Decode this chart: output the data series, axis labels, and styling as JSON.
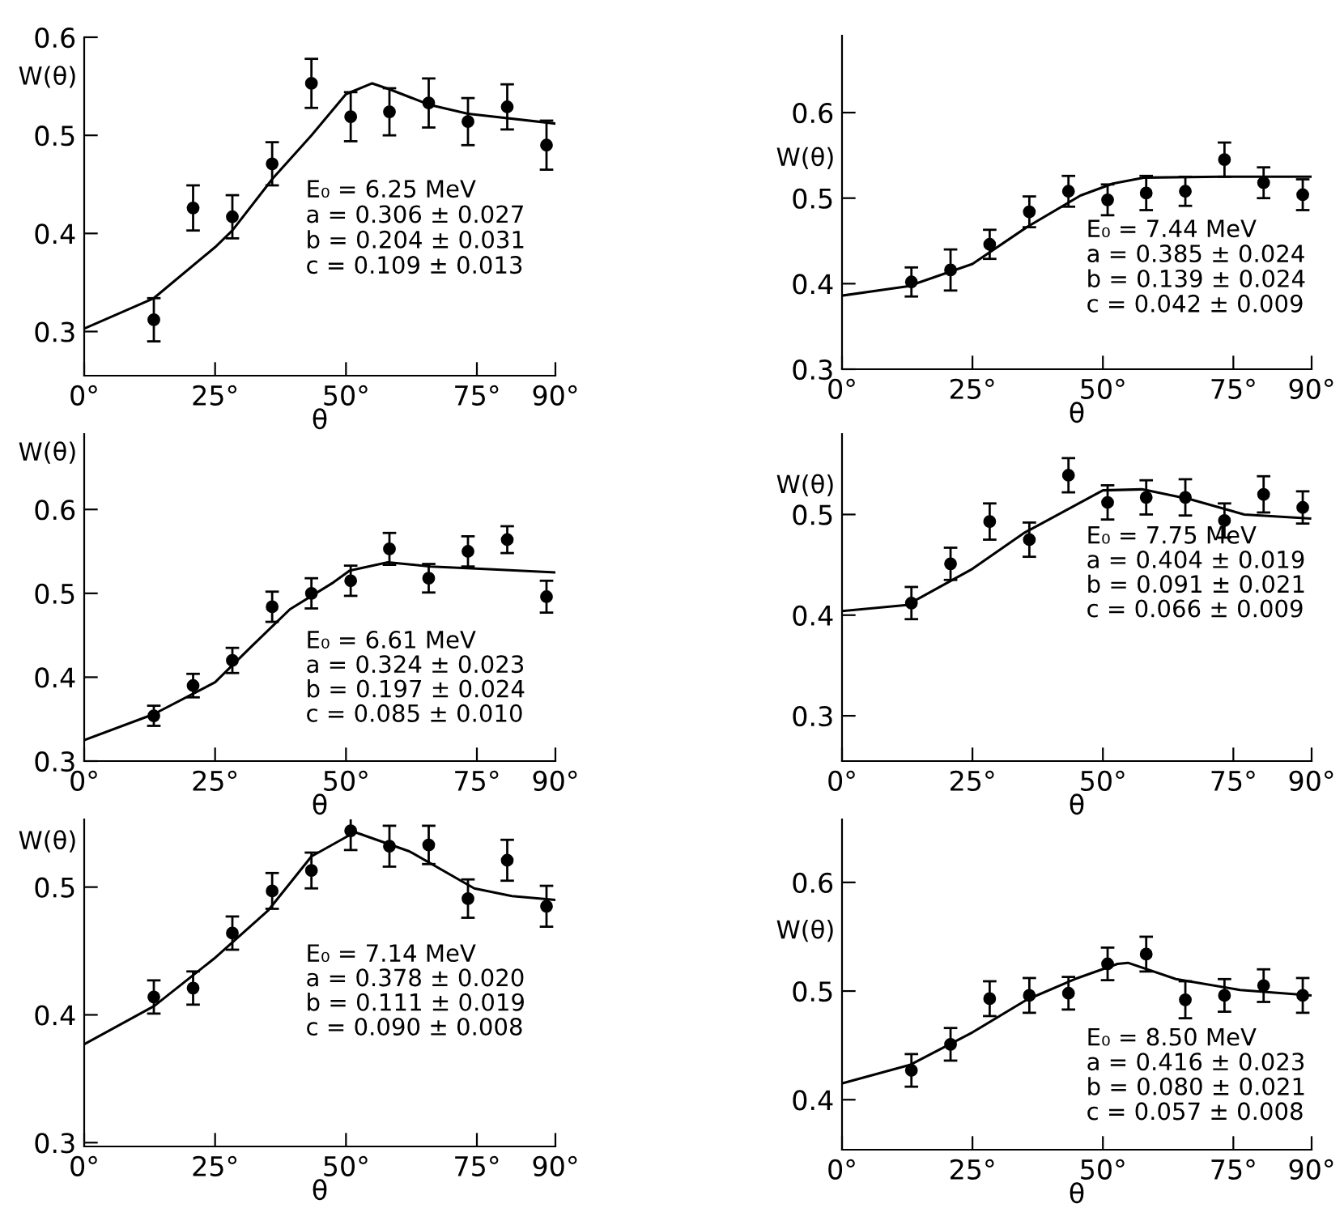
{
  "chart_data": [
    {
      "type": "scatter",
      "xlabel": "θ",
      "ylabel": "W(θ)",
      "xlim": [
        0,
        90
      ],
      "ylim": [
        0.255,
        0.6
      ],
      "xticks": [
        {
          "value": 0,
          "label": "0°"
        },
        {
          "value": 25,
          "label": "25°"
        },
        {
          "value": 50,
          "label": "50°"
        },
        {
          "value": 75,
          "label": "75°"
        },
        {
          "value": 90,
          "label": "90°"
        }
      ],
      "yticks": [
        0.3,
        0.4,
        0.5,
        0.6
      ],
      "grid": false,
      "line_style": "solid",
      "annotations": [
        "E₀ = 6.25 MeV",
        "a = 0.306 ± 0.027",
        "b = 0.204 ± 0.031",
        "c = 0.109 ± 0.013"
      ],
      "series": [
        {
          "marker": "circle",
          "color": "#000000",
          "x": [
            13.3,
            20.8,
            28.3,
            35.9,
            43.4,
            50.9,
            58.3,
            65.8,
            73.3,
            80.8,
            88.3
          ],
          "values": [
            0.312,
            0.426,
            0.417,
            0.471,
            0.553,
            0.519,
            0.524,
            0.533,
            0.514,
            0.529,
            0.49
          ],
          "errors": [
            0.022,
            0.023,
            0.022,
            0.022,
            0.025,
            0.025,
            0.024,
            0.025,
            0.024,
            0.023,
            0.025
          ]
        },
        {
          "type": "line",
          "color": "#000000",
          "x": [
            0,
            13.3,
            25,
            28.3,
            36,
            43.4,
            50,
            55,
            58.3,
            66,
            73.3,
            90
          ],
          "values": [
            0.303,
            0.334,
            0.386,
            0.403,
            0.456,
            0.5,
            0.542,
            0.553,
            0.547,
            0.531,
            0.522,
            0.512
          ]
        }
      ]
    },
    {
      "type": "scatter",
      "xlabel": "θ",
      "ylabel": "W(θ)",
      "xlim": [
        0,
        90
      ],
      "ylim": [
        0.3,
        0.69
      ],
      "xticks": [
        {
          "value": 0,
          "label": "0°"
        },
        {
          "value": 25,
          "label": "25°"
        },
        {
          "value": 50,
          "label": "50°"
        },
        {
          "value": 75,
          "label": "75°"
        },
        {
          "value": 90,
          "label": "90°"
        }
      ],
      "yticks": [
        0.3,
        0.4,
        0.5,
        0.6
      ],
      "grid": false,
      "line_style": "solid",
      "annotations": [
        "E₀ = 7.44 MeV",
        "a = 0.385 ± 0.024",
        "b = 0.139 ± 0.024",
        "c = 0.042 ± 0.009"
      ],
      "series": [
        {
          "marker": "circle",
          "color": "#000000",
          "x": [
            13.3,
            20.8,
            28.3,
            35.9,
            43.4,
            50.9,
            58.3,
            65.8,
            73.3,
            80.8,
            88.3
          ],
          "values": [
            0.402,
            0.416,
            0.446,
            0.484,
            0.508,
            0.498,
            0.506,
            0.508,
            0.545,
            0.518,
            0.504
          ],
          "errors": [
            0.017,
            0.024,
            0.017,
            0.018,
            0.018,
            0.018,
            0.02,
            0.017,
            0.02,
            0.018,
            0.018
          ]
        },
        {
          "type": "line",
          "color": "#000000",
          "x": [
            0,
            12.7,
            25,
            35.4,
            45.7,
            51.9,
            58,
            72.6,
            90
          ],
          "values": [
            0.386,
            0.397,
            0.423,
            0.466,
            0.503,
            0.517,
            0.524,
            0.525,
            0.525
          ]
        }
      ]
    },
    {
      "type": "scatter",
      "xlabel": "θ",
      "ylabel": "W(θ)",
      "xlim": [
        0,
        90
      ],
      "ylim": [
        0.3,
        0.69
      ],
      "xticks": [
        {
          "value": 0,
          "label": "0°"
        },
        {
          "value": 25,
          "label": "25°"
        },
        {
          "value": 50,
          "label": "50°"
        },
        {
          "value": 75,
          "label": "75°"
        },
        {
          "value": 90,
          "label": "90°"
        }
      ],
      "yticks": [
        0.3,
        0.4,
        0.5,
        0.6
      ],
      "grid": false,
      "line_style": "solid",
      "annotations": [
        "E₀ = 6.61 MeV",
        "a = 0.324 ± 0.023",
        "b = 0.197 ± 0.024",
        "c = 0.085 ± 0.010"
      ],
      "series": [
        {
          "marker": "circle",
          "color": "#000000",
          "x": [
            13.3,
            20.8,
            28.3,
            35.9,
            43.4,
            50.9,
            58.3,
            65.8,
            73.3,
            80.8,
            88.3
          ],
          "values": [
            0.354,
            0.39,
            0.42,
            0.484,
            0.5,
            0.515,
            0.553,
            0.518,
            0.55,
            0.564,
            0.496
          ],
          "errors": [
            0.012,
            0.014,
            0.015,
            0.018,
            0.018,
            0.018,
            0.019,
            0.017,
            0.018,
            0.016,
            0.019
          ]
        },
        {
          "type": "line",
          "color": "#000000",
          "x": [
            0,
            13.3,
            25,
            32,
            39.3,
            47.6,
            50.7,
            58,
            66.2,
            76.5,
            89.8
          ],
          "values": [
            0.325,
            0.356,
            0.394,
            0.437,
            0.481,
            0.513,
            0.527,
            0.537,
            0.532,
            0.529,
            0.525
          ]
        }
      ]
    },
    {
      "type": "scatter",
      "xlabel": "θ",
      "ylabel": "W(θ)",
      "xlim": [
        0,
        90
      ],
      "ylim": [
        0.255,
        0.58
      ],
      "xticks": [
        {
          "value": 0,
          "label": "0°"
        },
        {
          "value": 25,
          "label": "25°"
        },
        {
          "value": 50,
          "label": "50°"
        },
        {
          "value": 75,
          "label": "75°"
        },
        {
          "value": 90,
          "label": "90°"
        }
      ],
      "yticks": [
        0.3,
        0.4,
        0.5
      ],
      "grid": false,
      "line_style": "solid",
      "annotations": [
        "E₀ = 7.75 MeV",
        "a = 0.404 ± 0.019",
        "b = 0.091 ± 0.021",
        "c = 0.066 ± 0.009"
      ],
      "series": [
        {
          "marker": "circle",
          "color": "#000000",
          "x": [
            13.3,
            20.8,
            28.3,
            35.9,
            43.4,
            50.9,
            58.3,
            65.8,
            73.3,
            80.8,
            88.3
          ],
          "values": [
            0.412,
            0.451,
            0.493,
            0.475,
            0.539,
            0.512,
            0.517,
            0.517,
            0.494,
            0.52,
            0.507
          ],
          "errors": [
            0.016,
            0.016,
            0.018,
            0.017,
            0.017,
            0.017,
            0.017,
            0.018,
            0.017,
            0.018,
            0.016
          ]
        },
        {
          "type": "line",
          "color": "#000000",
          "x": [
            0,
            12.4,
            25,
            35,
            50,
            57.5,
            66.8,
            77.1,
            89.7
          ],
          "values": [
            0.404,
            0.41,
            0.446,
            0.482,
            0.524,
            0.525,
            0.515,
            0.5,
            0.496
          ]
        }
      ]
    },
    {
      "type": "scatter",
      "xlabel": "θ",
      "ylabel": "W(θ)",
      "xlim": [
        0,
        90
      ],
      "ylim": [
        0.297,
        0.553
      ],
      "xticks": [
        {
          "value": 0,
          "label": "0°"
        },
        {
          "value": 25,
          "label": "25°"
        },
        {
          "value": 50,
          "label": "50°"
        },
        {
          "value": 75,
          "label": "75°"
        },
        {
          "value": 90,
          "label": "90°"
        }
      ],
      "yticks": [
        0.3,
        0.4,
        0.5
      ],
      "grid": false,
      "line_style": "solid",
      "annotations": [
        "E₀ = 7.14 MeV",
        "a = 0.378 ± 0.020",
        "b = 0.111 ± 0.019",
        "c = 0.090 ± 0.008"
      ],
      "series": [
        {
          "marker": "circle",
          "color": "#000000",
          "x": [
            13.3,
            20.8,
            28.3,
            35.9,
            43.4,
            50.9,
            58.3,
            65.8,
            73.3,
            80.8,
            88.3
          ],
          "values": [
            0.414,
            0.421,
            0.464,
            0.497,
            0.513,
            0.544,
            0.532,
            0.533,
            0.491,
            0.521,
            0.485
          ],
          "errors": [
            0.013,
            0.013,
            0.013,
            0.014,
            0.014,
            0.015,
            0.016,
            0.015,
            0.015,
            0.016,
            0.016
          ]
        },
        {
          "type": "line",
          "color": "#000000",
          "x": [
            0,
            13.4,
            24.8,
            35.2,
            43.4,
            51.7,
            62.1,
            74.5,
            81.7,
            90
          ],
          "values": [
            0.377,
            0.407,
            0.444,
            0.482,
            0.524,
            0.543,
            0.528,
            0.499,
            0.493,
            0.49
          ]
        }
      ]
    },
    {
      "type": "scatter",
      "xlabel": "θ",
      "ylabel": "W(θ)",
      "xlim": [
        0,
        90
      ],
      "ylim": [
        0.354,
        0.658
      ],
      "xticks": [
        {
          "value": 0,
          "label": "0°"
        },
        {
          "value": 25,
          "label": "25°"
        },
        {
          "value": 50,
          "label": "50°"
        },
        {
          "value": 75,
          "label": "75°"
        },
        {
          "value": 90,
          "label": "90°"
        }
      ],
      "yticks": [
        0.4,
        0.5,
        0.6
      ],
      "grid": false,
      "line_style": "solid",
      "annotations": [
        "E₀ = 8.50 MeV",
        "a = 0.416 ± 0.023",
        "b = 0.080 ± 0.021",
        "c = 0.057 ± 0.008"
      ],
      "series": [
        {
          "marker": "circle",
          "color": "#000000",
          "x": [
            13.3,
            20.8,
            28.3,
            35.9,
            43.4,
            50.9,
            58.3,
            65.8,
            73.3,
            80.8,
            88.3
          ],
          "values": [
            0.427,
            0.451,
            0.493,
            0.496,
            0.498,
            0.525,
            0.534,
            0.492,
            0.496,
            0.505,
            0.496
          ],
          "errors": [
            0.015,
            0.015,
            0.016,
            0.016,
            0.015,
            0.015,
            0.016,
            0.017,
            0.015,
            0.015,
            0.016
          ]
        },
        {
          "type": "line",
          "color": "#000000",
          "x": [
            0,
            13,
            25,
            35.4,
            44.6,
            52.8,
            54.8,
            64,
            76.3,
            90
          ],
          "values": [
            0.415,
            0.432,
            0.462,
            0.492,
            0.511,
            0.525,
            0.526,
            0.511,
            0.501,
            0.496
          ]
        }
      ]
    }
  ]
}
